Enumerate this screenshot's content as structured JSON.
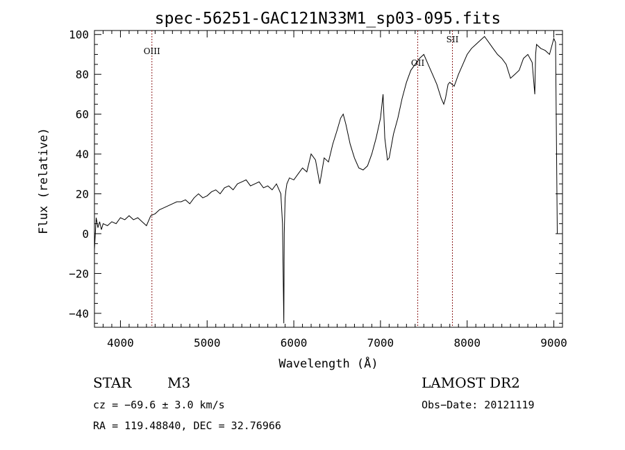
{
  "chart_data": {
    "type": "line",
    "title": "spec-56251-GAC121N33M1_sp03-095.fits",
    "xlabel": "Wavelength (Å)",
    "ylabel": "Flux (relative)",
    "xlim": [
      3700,
      9100
    ],
    "ylim": [
      -47,
      102
    ],
    "x_ticks": [
      4000,
      5000,
      6000,
      7000,
      8000,
      9000
    ],
    "y_ticks": [
      -40,
      -20,
      0,
      20,
      40,
      60,
      80,
      100
    ],
    "x_tick_labels": [
      "4000",
      "5000",
      "6000",
      "7000",
      "8000",
      "9000"
    ],
    "y_tick_labels": [
      "−40",
      "−20",
      "0",
      "20",
      "40",
      "60",
      "80",
      "100"
    ],
    "lines": [
      {
        "label": "OIII",
        "x": 4363
      },
      {
        "label": "OII",
        "x": 7430
      },
      {
        "label": "SII",
        "x": 7830
      }
    ],
    "series": [
      {
        "x": [
          3700,
          3720,
          3740,
          3760,
          3780,
          3800,
          3850,
          3900,
          3950,
          4000,
          4050,
          4100,
          4150,
          4200,
          4250,
          4300,
          4350,
          4400,
          4450,
          4500,
          4550,
          4600,
          4650,
          4700,
          4750,
          4800,
          4850,
          4900,
          4950,
          5000,
          5050,
          5100,
          5150,
          5200,
          5250,
          5300,
          5350,
          5400,
          5450,
          5500,
          5550,
          5600,
          5650,
          5700,
          5750,
          5800,
          5850,
          5870,
          5885,
          5890,
          5900,
          5910,
          5920,
          5950,
          6000,
          6050,
          6100,
          6150,
          6200,
          6250,
          6300,
          6350,
          6400,
          6450,
          6500,
          6540,
          6570,
          6600,
          6650,
          6700,
          6750,
          6800,
          6850,
          6900,
          6950,
          7000,
          7030,
          7050,
          7080,
          7100,
          7150,
          7200,
          7250,
          7300,
          7350,
          7400,
          7450,
          7500,
          7550,
          7600,
          7650,
          7700,
          7730,
          7750,
          7780,
          7800,
          7850,
          7900,
          7950,
          8000,
          8050,
          8100,
          8150,
          8200,
          8250,
          8300,
          8350,
          8400,
          8450,
          8500,
          8550,
          8600,
          8650,
          8700,
          8750,
          8780,
          8790,
          8800,
          8850,
          8900,
          8950,
          9000,
          9020,
          9040,
          9050
        ],
        "y": [
          -8,
          8,
          3,
          6,
          2,
          5,
          4,
          6,
          5,
          8,
          7,
          9,
          7,
          8,
          6,
          4,
          9,
          10,
          12,
          13,
          14,
          15,
          16,
          16,
          17,
          15,
          18,
          20,
          18,
          19,
          21,
          22,
          20,
          23,
          24,
          22,
          25,
          26,
          27,
          24,
          25,
          26,
          23,
          24,
          22,
          25,
          20,
          5,
          -45,
          0,
          18,
          22,
          25,
          28,
          27,
          30,
          33,
          31,
          40,
          37,
          25,
          38,
          36,
          45,
          52,
          58,
          60,
          55,
          45,
          38,
          33,
          32,
          34,
          40,
          48,
          58,
          70,
          48,
          37,
          38,
          50,
          58,
          68,
          76,
          82,
          85,
          88,
          90,
          85,
          80,
          75,
          68,
          65,
          68,
          75,
          76,
          74,
          80,
          85,
          90,
          93,
          95,
          97,
          99,
          96,
          93,
          90,
          88,
          85,
          78,
          80,
          82,
          88,
          90,
          86,
          70,
          90,
          95,
          93,
          92,
          90,
          98,
          96,
          0,
          0
        ]
      }
    ]
  },
  "footer": {
    "object_class": "STAR",
    "subclass": "M3",
    "survey": "LAMOST DR2",
    "cz": "cz = −69.6 ± 3.0 km/s",
    "obs_date": "Obs−Date: 20121119",
    "coords": "RA = 119.48840, DEC =  32.76966"
  }
}
